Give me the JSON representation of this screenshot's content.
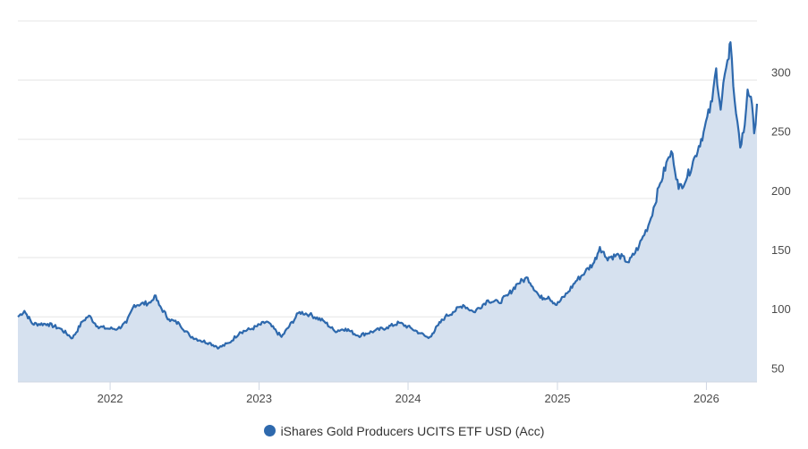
{
  "colors": {
    "line": "#2e69ad",
    "area": "#d6e1ef",
    "grid": "#e6e6e6",
    "axis": "#cfd6e3"
  },
  "legend": {
    "label": "iShares Gold Producers UCITS ETF USD (Acc)",
    "marker_icon": "circle"
  },
  "chart_data": {
    "type": "area",
    "x_axis": {
      "type": "date",
      "range": [
        "2021-05-20",
        "2026-05-05"
      ],
      "ticks": [
        "2022",
        "2023",
        "2024",
        "2025",
        "2026"
      ]
    },
    "y_axis": {
      "range": [
        45,
        345
      ],
      "ticks": [
        50,
        100,
        150,
        200,
        250,
        300
      ],
      "position": "right"
    },
    "grid": true,
    "legend_position": "bottom",
    "series": [
      {
        "name": "iShares Gold Producers UCITS ETF USD (Acc)",
        "points": [
          [
            "2021-05-20",
            100
          ],
          [
            "2021-06-05",
            105
          ],
          [
            "2021-06-25",
            94
          ],
          [
            "2021-08-01",
            94
          ],
          [
            "2021-09-01",
            90
          ],
          [
            "2021-10-01",
            82
          ],
          [
            "2021-10-25",
            96
          ],
          [
            "2021-11-10",
            101
          ],
          [
            "2021-12-01",
            92
          ],
          [
            "2021-12-25",
            90
          ],
          [
            "2022-01-20",
            90
          ],
          [
            "2022-02-10",
            95
          ],
          [
            "2022-03-01",
            110
          ],
          [
            "2022-04-10",
            112
          ],
          [
            "2022-04-20",
            118
          ],
          [
            "2022-05-01",
            110
          ],
          [
            "2022-05-25",
            98
          ],
          [
            "2022-06-20",
            94
          ],
          [
            "2022-07-15",
            84
          ],
          [
            "2022-08-10",
            80
          ],
          [
            "2022-09-01",
            78
          ],
          [
            "2022-09-25",
            74
          ],
          [
            "2022-10-20",
            78
          ],
          [
            "2022-11-15",
            87
          ],
          [
            "2022-12-15",
            90
          ],
          [
            "2023-01-20",
            96
          ],
          [
            "2023-02-25",
            83
          ],
          [
            "2023-04-10",
            104
          ],
          [
            "2023-05-05",
            102
          ],
          [
            "2023-06-10",
            96
          ],
          [
            "2023-07-05",
            88
          ],
          [
            "2023-08-01",
            90
          ],
          [
            "2023-09-01",
            84
          ],
          [
            "2023-10-10",
            88
          ],
          [
            "2023-11-10",
            91
          ],
          [
            "2023-12-10",
            95
          ],
          [
            "2024-01-10",
            90
          ],
          [
            "2024-02-01",
            86
          ],
          [
            "2024-02-20",
            82
          ],
          [
            "2024-03-01",
            86
          ],
          [
            "2024-03-15",
            93
          ],
          [
            "2024-04-01",
            100
          ],
          [
            "2024-04-20",
            104
          ],
          [
            "2024-05-15",
            110
          ],
          [
            "2024-06-10",
            104
          ],
          [
            "2024-07-15",
            114
          ],
          [
            "2024-08-10",
            112
          ],
          [
            "2024-09-01",
            118
          ],
          [
            "2024-09-25",
            128
          ],
          [
            "2024-10-20",
            133
          ],
          [
            "2024-11-20",
            116
          ],
          [
            "2024-12-10",
            117
          ],
          [
            "2024-12-30",
            110
          ],
          [
            "2025-01-25",
            120
          ],
          [
            "2025-02-15",
            130
          ],
          [
            "2025-03-10",
            138
          ],
          [
            "2025-04-01",
            146
          ],
          [
            "2025-04-15",
            159
          ],
          [
            "2025-05-01",
            150
          ],
          [
            "2025-06-01",
            152
          ],
          [
            "2025-06-25",
            146
          ],
          [
            "2025-07-20",
            160
          ],
          [
            "2025-08-15",
            180
          ],
          [
            "2025-09-10",
            213
          ],
          [
            "2025-10-01",
            235
          ],
          [
            "2025-10-10",
            238
          ],
          [
            "2025-10-25",
            208
          ],
          [
            "2025-11-15",
            218
          ],
          [
            "2025-12-05",
            236
          ],
          [
            "2025-12-25",
            256
          ],
          [
            "2026-01-15",
            282
          ],
          [
            "2026-01-25",
            310
          ],
          [
            "2026-02-05",
            275
          ],
          [
            "2026-02-15",
            305
          ],
          [
            "2026-02-25",
            318
          ],
          [
            "2026-03-01",
            332
          ],
          [
            "2026-03-08",
            295
          ],
          [
            "2026-03-18",
            265
          ],
          [
            "2026-03-25",
            243
          ],
          [
            "2026-04-05",
            262
          ],
          [
            "2026-04-12",
            292
          ],
          [
            "2026-04-20",
            286
          ],
          [
            "2026-04-28",
            255
          ],
          [
            "2026-05-05",
            280
          ]
        ]
      }
    ]
  }
}
